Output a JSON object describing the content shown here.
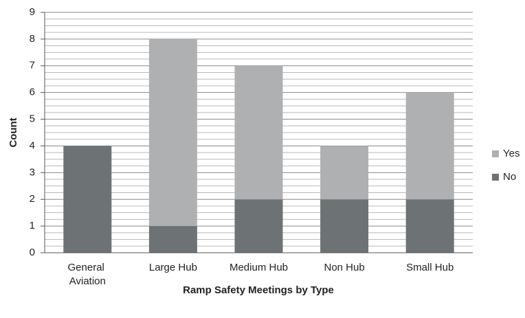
{
  "chart_data": {
    "type": "stacked_bar",
    "x_label": "Ramp Safety Meetings by Type",
    "y_label": "Count",
    "categories": [
      "General Aviation",
      "Large Hub",
      "Medium Hub",
      "Non Hub",
      "Small Hub"
    ],
    "series": [
      {
        "name": "No",
        "color": "#6d7374",
        "values": [
          4,
          1,
          2,
          2,
          2
        ]
      },
      {
        "name": "Yes",
        "color": "#aeb0b2",
        "values": [
          0,
          7,
          5,
          2,
          4
        ]
      }
    ],
    "ylim": [
      0,
      9
    ],
    "yticks": [
      0,
      1,
      2,
      3,
      4,
      5,
      6,
      7,
      8,
      9
    ],
    "grid": true,
    "minor_grid_divisions": 4,
    "legend": "right"
  }
}
